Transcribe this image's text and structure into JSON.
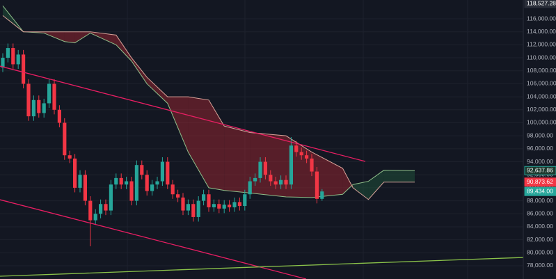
{
  "chart_data": {
    "type": "candlestick",
    "xlim": [
      -0.54,
      101.08
    ],
    "ylim": [
      75966,
      118891
    ],
    "yticks": [
      {
        "value": 78000,
        "label": "78,000.00"
      },
      {
        "value": 80000,
        "label": "80,000.00"
      },
      {
        "value": 82000,
        "label": "82,000.00"
      },
      {
        "value": 84000,
        "label": "84,000.00"
      },
      {
        "value": 86000,
        "label": "86,000.00"
      },
      {
        "value": 88000,
        "label": "88,000.00"
      },
      {
        "value": 90000,
        "label": "90,000.00"
      },
      {
        "value": 92000,
        "label": "92,000.00"
      },
      {
        "value": 94000,
        "label": "94,000.00"
      },
      {
        "value": 96000,
        "label": "96,000.00"
      },
      {
        "value": 98000,
        "label": "98,000.00"
      },
      {
        "value": 100000,
        "label": "100,000.00"
      },
      {
        "value": 102000,
        "label": "102,000.00"
      },
      {
        "value": 104000,
        "label": "104,000.00"
      },
      {
        "value": 106000,
        "label": "106,000.00"
      },
      {
        "value": 108000,
        "label": "108,000.00"
      },
      {
        "value": 110000,
        "label": "110,000.00"
      },
      {
        "value": 112000,
        "label": "112,000.00"
      },
      {
        "value": 114000,
        "label": "114,000.00"
      },
      {
        "value": 116000,
        "label": "116,000.00"
      }
    ],
    "grid": true,
    "up_color": "#26a69a",
    "down_color": "#f23645",
    "open": [
      108500,
      110000,
      111500,
      109000,
      110500,
      106000,
      101000,
      103500,
      101500,
      103000,
      106000,
      102000,
      100000,
      95000,
      94500,
      90000,
      92000,
      88000,
      85000,
      86000,
      87500,
      86500,
      90500,
      91500,
      90500,
      91000,
      88000,
      93500,
      92000,
      89500,
      90500,
      91000,
      94000,
      90500,
      89000,
      88500,
      86500,
      87500,
      85500,
      88000,
      89000,
      87000,
      87500,
      86800,
      87400,
      87000,
      87800,
      87200,
      89000,
      91000,
      91500,
      94000,
      92000,
      91000,
      90500,
      91200,
      90500,
      96500,
      95500,
      95000,
      94500,
      92500,
      88300
    ],
    "high": [
      110700,
      112200,
      112200,
      111200,
      111200,
      106700,
      104200,
      104200,
      103700,
      106700,
      106700,
      102700,
      100700,
      95700,
      95200,
      92700,
      92700,
      88700,
      86700,
      88200,
      88200,
      91200,
      92200,
      92200,
      91700,
      91700,
      94200,
      94200,
      92700,
      91200,
      91700,
      94700,
      94700,
      91200,
      89700,
      89200,
      88200,
      88200,
      88700,
      89700,
      89700,
      88200,
      88200,
      88100,
      88100,
      88500,
      88500,
      89700,
      91700,
      92200,
      94700,
      94700,
      92700,
      91700,
      91900,
      91900,
      97800,
      97200,
      96200,
      95700,
      95200,
      93200,
      89800
    ],
    "low": [
      107800,
      109300,
      108300,
      108300,
      105300,
      100300,
      100300,
      100800,
      100800,
      102300,
      101300,
      99300,
      94300,
      93800,
      89300,
      89300,
      87300,
      81000,
      84300,
      85300,
      85800,
      85800,
      89800,
      89800,
      89800,
      87300,
      87300,
      91300,
      88800,
      88800,
      89800,
      90300,
      89800,
      88300,
      87800,
      85800,
      85800,
      84800,
      84800,
      87300,
      86300,
      86300,
      86100,
      86100,
      86300,
      86300,
      86500,
      86500,
      88300,
      90300,
      90800,
      91300,
      90300,
      89800,
      89800,
      89800,
      89800,
      94800,
      94300,
      93800,
      91800,
      87600,
      88000
    ],
    "close": [
      110000,
      111500,
      109000,
      110500,
      106000,
      101000,
      103500,
      101500,
      103000,
      106000,
      102000,
      100000,
      95000,
      94500,
      90000,
      92000,
      88000,
      85000,
      86000,
      87500,
      86500,
      90500,
      91500,
      90500,
      91000,
      88000,
      93500,
      92000,
      89500,
      90500,
      91000,
      94000,
      90500,
      89000,
      88500,
      86500,
      87500,
      85500,
      88000,
      89000,
      87000,
      87500,
      86800,
      87400,
      87000,
      87800,
      87200,
      89000,
      91000,
      91500,
      94000,
      92000,
      91000,
      90500,
      91200,
      90500,
      96500,
      95500,
      95000,
      94500,
      92500,
      88300,
      89434
    ],
    "cloud": {
      "x": [
        0,
        4,
        8,
        12,
        14,
        17,
        22,
        25,
        28,
        32,
        36,
        40,
        43,
        48,
        55,
        60,
        66,
        68,
        71,
        74,
        80
      ],
      "series": [
        {
          "color": "#8fbf8a",
          "values": [
            118000,
            114000,
            113800,
            112500,
            112300,
            113800,
            112000,
            109500,
            106000,
            103000,
            95500,
            90000,
            89600,
            89200,
            88600,
            88500,
            89000,
            90500,
            91000,
            92700,
            92638
          ]
        },
        {
          "color": "#d9a49a",
          "values": [
            116500,
            114000,
            114000,
            114000,
            114000,
            114000,
            113500,
            110000,
            107000,
            104000,
            104000,
            103500,
            99500,
            98500,
            98000,
            95500,
            93000,
            90000,
            88200,
            90873,
            90873
          ]
        }
      ],
      "up_fill": "rgba(38,110,70,0.35)",
      "down_fill": "rgba(170,40,50,0.45)"
    },
    "trendlines": [
      {
        "color": "#e91e63",
        "x": [
          -0.54,
          70.4
        ],
        "values": [
          108719,
          94051
        ]
      },
      {
        "color": "#e91e63",
        "x": [
          -0.54,
          58.9
        ],
        "values": [
          88163,
          75966
        ]
      },
      {
        "color": "#8bc34a",
        "x": [
          -0.54,
          101.08
        ],
        "values": [
          76391,
          79277
        ]
      }
    ],
    "price_labels": [
      {
        "value": 92637.86,
        "label": "92,637.86",
        "color": "#1e3a2f",
        "border": "#26a69a"
      },
      {
        "value": 90873.62,
        "label": "90,873.62",
        "color": "#f23645",
        "border": "#f23645"
      },
      {
        "value": 89434,
        "label": "89,434.00",
        "color": "#26a69a",
        "border": "#26a69a"
      },
      {
        "value": 118527.28,
        "label": "118,527.28",
        "color": "#2a2e39",
        "border": "#2a2e39"
      }
    ]
  }
}
